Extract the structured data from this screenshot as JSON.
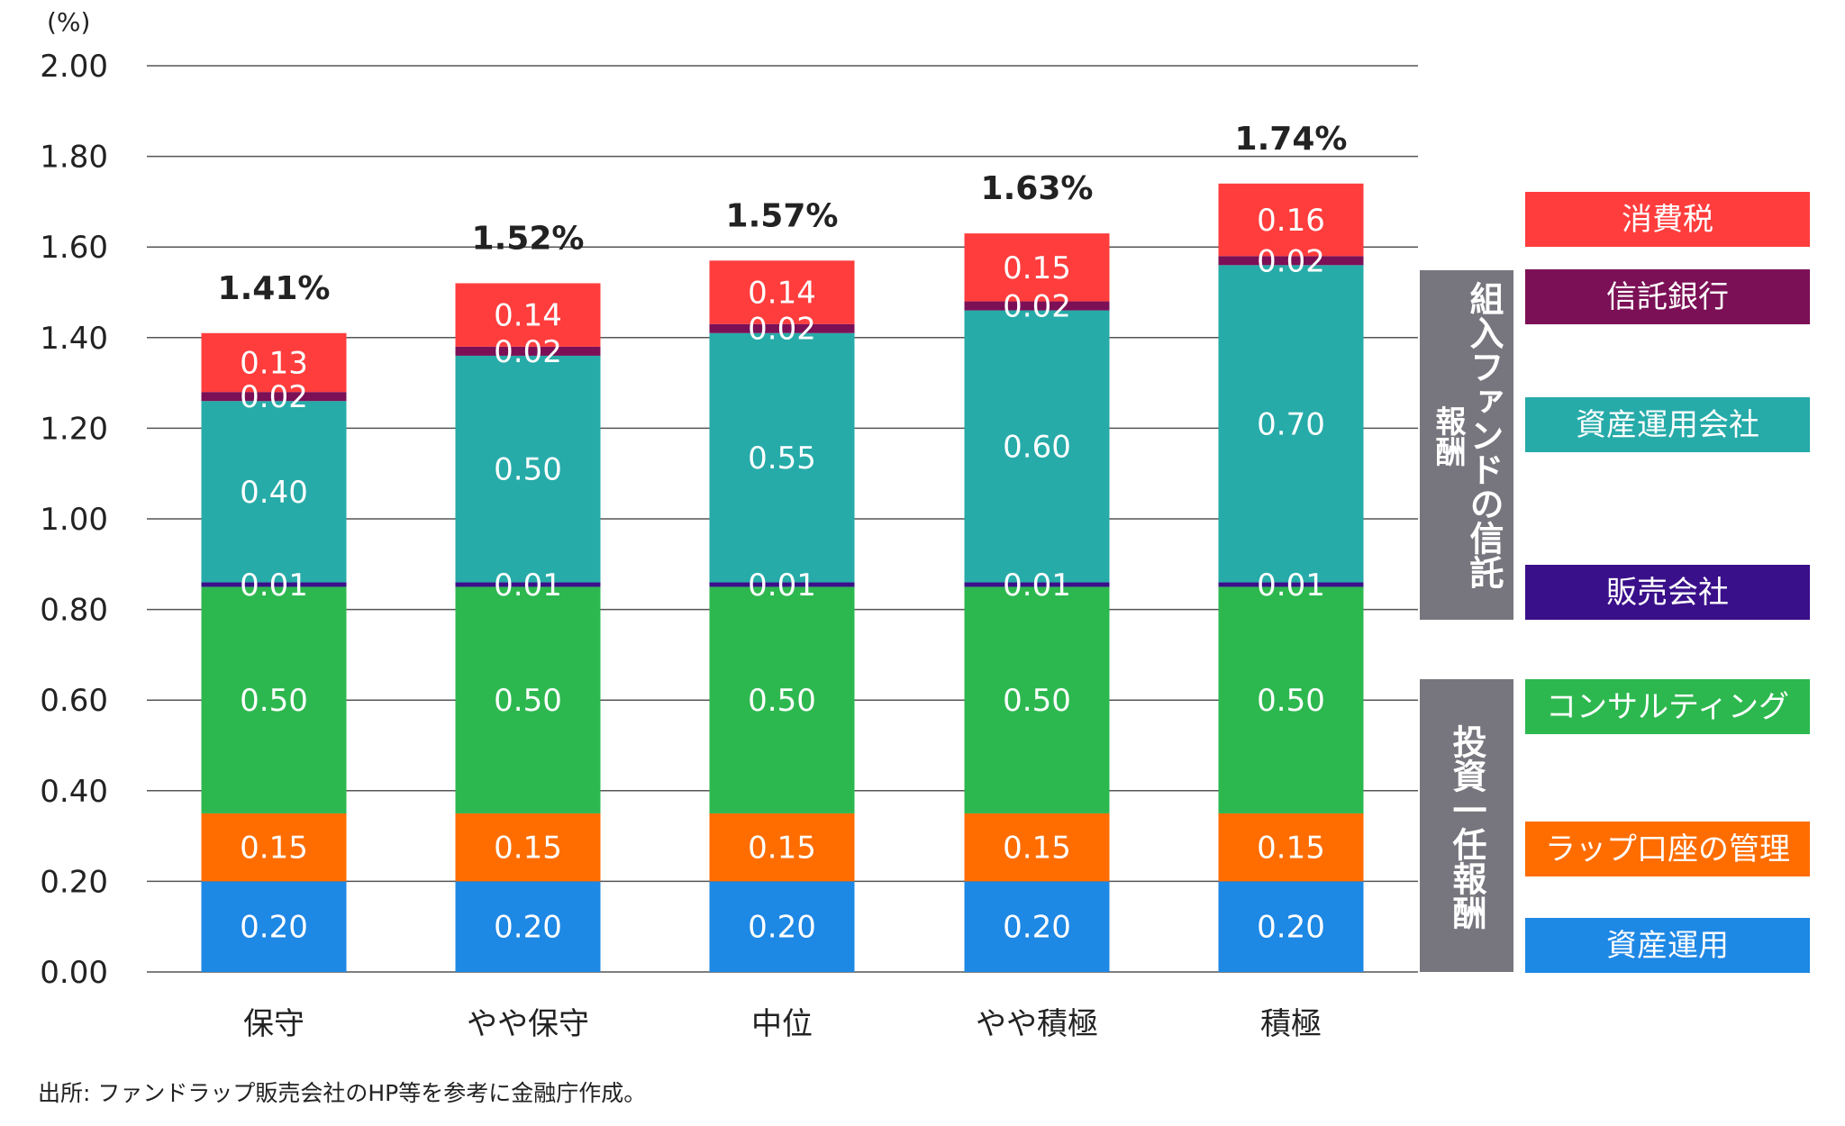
{
  "chart_data": {
    "type": "bar",
    "stacked": true,
    "unit_label": "(%)",
    "ylim": [
      0,
      2.0
    ],
    "yticks": [
      "0.00",
      "0.20",
      "0.40",
      "0.60",
      "0.80",
      "1.00",
      "1.20",
      "1.40",
      "1.60",
      "1.80",
      "2.00"
    ],
    "grid": true,
    "categories": [
      "保守",
      "やや保守",
      "中位",
      "やや積極",
      "積極"
    ],
    "totals": [
      "1.41%",
      "1.52%",
      "1.57%",
      "1.63%",
      "1.74%"
    ],
    "series": [
      {
        "name": "資産運用",
        "color": "#1e88e5",
        "values": [
          0.2,
          0.2,
          0.2,
          0.2,
          0.2
        ],
        "labels": [
          "0.20",
          "0.20",
          "0.20",
          "0.20",
          "0.20"
        ]
      },
      {
        "name": "ラップ口座の管理",
        "color": "#ff6d00",
        "values": [
          0.15,
          0.15,
          0.15,
          0.15,
          0.15
        ],
        "labels": [
          "0.15",
          "0.15",
          "0.15",
          "0.15",
          "0.15"
        ]
      },
      {
        "name": "コンサルティング",
        "color": "#2db84f",
        "values": [
          0.5,
          0.5,
          0.5,
          0.5,
          0.5
        ],
        "labels": [
          "0.50",
          "0.50",
          "0.50",
          "0.50",
          "0.50"
        ]
      },
      {
        "name": "販売会社",
        "color": "#3a0f8a",
        "values": [
          0.01,
          0.01,
          0.01,
          0.01,
          0.01
        ],
        "labels": [
          "0.01",
          "0.01",
          "0.01",
          "0.01",
          "0.01"
        ]
      },
      {
        "name": "資産運用会社",
        "color": "#26aba9",
        "values": [
          0.4,
          0.5,
          0.55,
          0.6,
          0.7
        ],
        "labels": [
          "0.40",
          "0.50",
          "0.55",
          "0.60",
          "0.70"
        ]
      },
      {
        "name": "信託銀行",
        "color": "#7b1056",
        "values": [
          0.02,
          0.02,
          0.02,
          0.02,
          0.02
        ],
        "labels": [
          "0.02",
          "0.02",
          "0.02",
          "0.02",
          "0.02"
        ]
      },
      {
        "name": "消費税",
        "color": "#ff3d3d",
        "values": [
          0.13,
          0.14,
          0.14,
          0.15,
          0.16
        ],
        "labels": [
          "0.13",
          "0.14",
          "0.14",
          "0.15",
          "0.16"
        ]
      }
    ],
    "legend_placement": "right",
    "groups": [
      {
        "label_main": "組入ファンドの信託",
        "label_sub": "報酬",
        "members": [
          "消費税",
          "信託銀行",
          "資産運用会社",
          "販売会社"
        ]
      },
      {
        "label_main": "投資一任報酬",
        "members": [
          "コンサルティング",
          "ラップ口座の管理",
          "資産運用"
        ]
      }
    ],
    "source": "出所: ファンドラップ販売会社のHP等を参考に金融庁作成。"
  }
}
